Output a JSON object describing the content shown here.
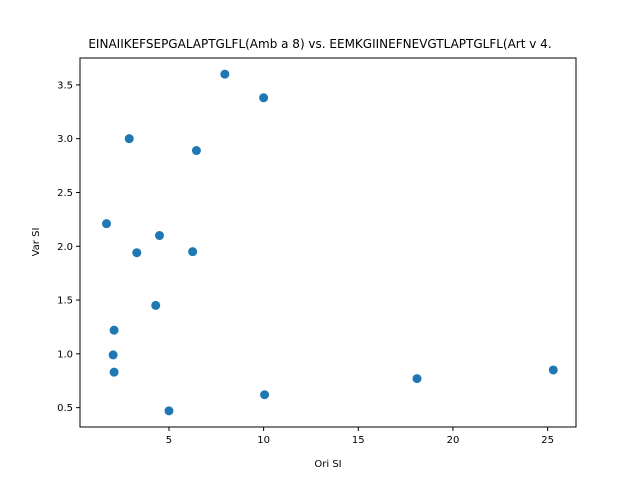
{
  "chart_data": {
    "type": "scatter",
    "title": "EINAIIKEFSEPGALAPTGLFL(Amb a 8) vs. EEMKGIINEFNEVGTLAPTGLFL(Art v 4.",
    "xlabel": "Ori SI",
    "ylabel": "Var SI",
    "xlim": [
      0.3,
      26.5
    ],
    "ylim": [
      0.32,
      3.75
    ],
    "xticks": [
      5,
      10,
      15,
      20,
      25
    ],
    "xtick_labels": [
      "5",
      "10",
      "15",
      "20",
      "25"
    ],
    "yticks": [
      0.5,
      1.0,
      1.5,
      2.0,
      2.5,
      3.0,
      3.5
    ],
    "ytick_labels": [
      "0.5",
      "1.0",
      "1.5",
      "2.0",
      "2.5",
      "3.0",
      "3.5"
    ],
    "grid": false,
    "marker_color": "#1f77b4",
    "points": [
      {
        "x": 7.95,
        "y": 3.6
      },
      {
        "x": 10.0,
        "y": 3.38
      },
      {
        "x": 2.9,
        "y": 3.0
      },
      {
        "x": 6.45,
        "y": 2.89
      },
      {
        "x": 1.7,
        "y": 2.21
      },
      {
        "x": 4.5,
        "y": 2.1
      },
      {
        "x": 3.3,
        "y": 1.94
      },
      {
        "x": 6.25,
        "y": 1.95
      },
      {
        "x": 4.3,
        "y": 1.45
      },
      {
        "x": 2.1,
        "y": 1.22
      },
      {
        "x": 2.05,
        "y": 0.99
      },
      {
        "x": 2.1,
        "y": 0.83
      },
      {
        "x": 25.3,
        "y": 0.85
      },
      {
        "x": 18.1,
        "y": 0.77
      },
      {
        "x": 10.05,
        "y": 0.62
      },
      {
        "x": 5.0,
        "y": 0.47
      }
    ]
  }
}
